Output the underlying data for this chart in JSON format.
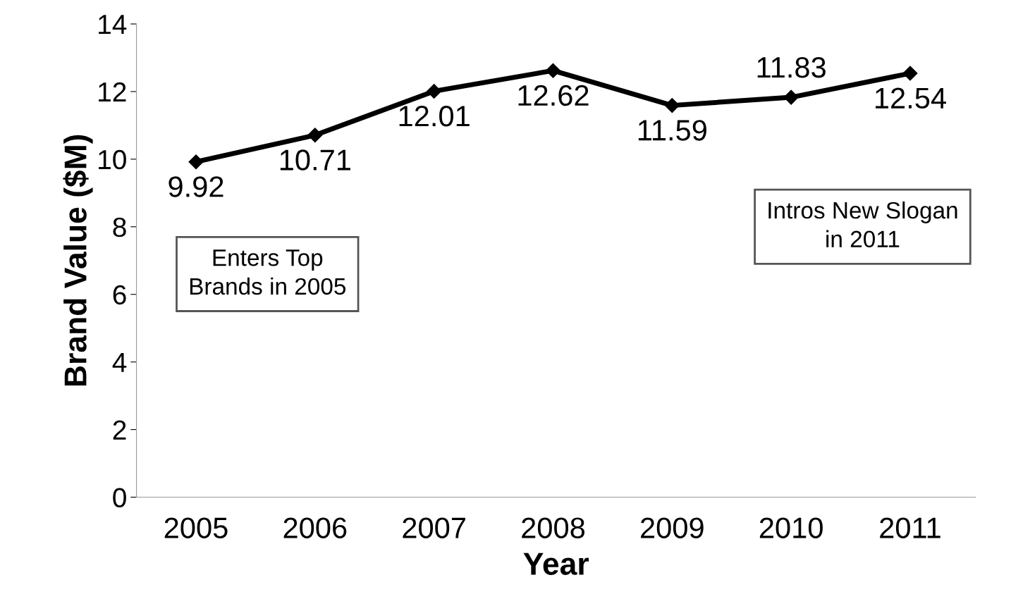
{
  "chart_data": {
    "type": "line",
    "xlabel": "Year",
    "ylabel": "Brand Value ($M)",
    "categories": [
      "2005",
      "2006",
      "2007",
      "2008",
      "2009",
      "2010",
      "2011"
    ],
    "series": [
      {
        "color": "#000000",
        "values": [
          9.92,
          10.71,
          12.01,
          12.62,
          11.59,
          11.83,
          12.54
        ]
      }
    ],
    "ylim": [
      0,
      14
    ],
    "yticks": [
      0,
      2,
      4,
      6,
      8,
      10,
      12,
      14
    ],
    "data_labels": true,
    "marker": "diamond",
    "line_style": "solid",
    "grid": false,
    "annotations": [
      "Enters Top\nBrands in 2005",
      "Intros New Slogan\nin 2011"
    ]
  }
}
